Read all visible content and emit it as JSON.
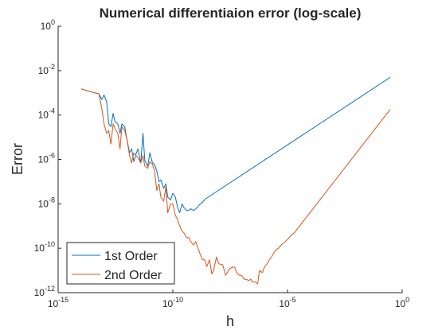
{
  "chart_data": {
    "type": "line",
    "title": "Numerical differentiaion error (log-scale)",
    "xlabel": "h",
    "ylabel": "Error",
    "xscale": "log",
    "yscale": "log",
    "xlim": [
      1e-15,
      1
    ],
    "ylim": [
      1e-12,
      1
    ],
    "grid": false,
    "legend_position": "bottom-left",
    "x_ticks": [
      {
        "value": 1e-15,
        "base": "10",
        "exp": "-15"
      },
      {
        "value": 1e-10,
        "base": "10",
        "exp": "-10"
      },
      {
        "value": 1e-05,
        "base": "10",
        "exp": "-5"
      },
      {
        "value": 1,
        "base": "10",
        "exp": "0"
      }
    ],
    "y_ticks": [
      {
        "value": 1e-12,
        "base": "10",
        "exp": "-12"
      },
      {
        "value": 1e-10,
        "base": "10",
        "exp": "-10"
      },
      {
        "value": 1e-08,
        "base": "10",
        "exp": "-8"
      },
      {
        "value": 1e-06,
        "base": "10",
        "exp": "-6"
      },
      {
        "value": 0.0001,
        "base": "10",
        "exp": "-4"
      },
      {
        "value": 0.01,
        "base": "10",
        "exp": "-2"
      },
      {
        "value": 1,
        "base": "10",
        "exp": "0"
      }
    ],
    "series": [
      {
        "name": "1st Order",
        "color": "#0072bd",
        "x": [
          1e-14,
          4e-14,
          6e-14,
          8e-14,
          1e-13,
          1.3e-13,
          1.6e-13,
          2e-13,
          2.5e-13,
          3e-13,
          4e-13,
          5e-13,
          6e-13,
          8e-13,
          1e-12,
          1.3e-12,
          1.6e-12,
          2e-12,
          2.5e-12,
          3e-12,
          4e-12,
          5e-12,
          6e-12,
          8e-12,
          1e-11,
          1.3e-11,
          1.6e-11,
          2e-11,
          2.5e-11,
          3e-11,
          4e-11,
          5e-11,
          6e-11,
          8e-11,
          1e-10,
          1.3e-10,
          1.6e-10,
          2e-10,
          2.5e-10,
          3e-10,
          4e-10,
          5e-10,
          6e-10,
          8e-10,
          1e-09,
          1.3e-09,
          1.6e-09,
          2e-09,
          2.5e-09,
          0.3
        ],
        "y": [
          0.0015,
          0.001,
          0.0009,
          0.0005,
          0.0008,
          0.0004,
          4e-05,
          3e-05,
          0.00012,
          5e-05,
          4e-05,
          1.5e-05,
          4e-05,
          3e-05,
          8e-06,
          2e-06,
          3e-06,
          8e-07,
          1.8e-06,
          3e-06,
          7e-07,
          1.5e-05,
          9e-07,
          5e-07,
          2e-06,
          7e-07,
          6e-07,
          3e-07,
          1e-07,
          1.2e-07,
          5e-08,
          8e-08,
          2e-08,
          1.5e-08,
          3e-08,
          2e-08,
          7e-09,
          4e-09,
          1e-08,
          7e-09,
          5e-09,
          5e-09,
          6e-09,
          5e-09,
          6e-09,
          8e-09,
          1e-08,
          1.2e-08,
          1.6e-08,
          0.005
        ]
      },
      {
        "name": "2nd Order",
        "color": "#d95319",
        "x": [
          1e-14,
          4e-14,
          6e-14,
          8e-14,
          1e-13,
          1.3e-13,
          1.6e-13,
          2e-13,
          2.5e-13,
          3e-13,
          4e-13,
          5e-13,
          6e-13,
          8e-13,
          1e-12,
          1.3e-12,
          1.6e-12,
          2e-12,
          2.5e-12,
          3e-12,
          4e-12,
          5e-12,
          6e-12,
          8e-12,
          1e-11,
          1.3e-11,
          1.6e-11,
          2e-11,
          2.5e-11,
          3e-11,
          4e-11,
          5e-11,
          6e-11,
          8e-11,
          1e-10,
          1.3e-10,
          1.6e-10,
          2e-10,
          2.5e-10,
          3e-10,
          4e-10,
          5e-10,
          6e-10,
          8e-10,
          1e-09,
          1.3e-09,
          1.6e-09,
          2e-09,
          2.5e-09,
          3e-09,
          4e-09,
          5e-09,
          6e-09,
          8e-09,
          1e-08,
          1.5e-08,
          2e-08,
          3e-08,
          4e-08,
          5e-08,
          6e-08,
          8e-08,
          1e-07,
          1.3e-07,
          1.6e-07,
          2e-07,
          2.5e-07,
          3e-07,
          4e-07,
          5e-07,
          6e-07,
          8e-07,
          1e-06,
          1.3e-06,
          1.6e-06,
          2e-06,
          2.5e-06,
          3e-06,
          4e-06,
          5e-06,
          6e-06,
          8e-06,
          1e-05,
          1.5e-05,
          2e-05,
          0.3
        ],
        "y": [
          0.0015,
          0.001,
          0.0009,
          0.0002,
          4e-05,
          1.5e-05,
          2e-05,
          5e-06,
          4e-05,
          2.5e-05,
          1.5e-05,
          3e-06,
          3e-05,
          2e-05,
          8e-06,
          1.5e-06,
          7e-07,
          2e-06,
          1.5e-06,
          1.2e-06,
          7e-07,
          1.5e-06,
          5e-07,
          4e-07,
          8e-07,
          6e-07,
          3e-07,
          4e-08,
          8e-08,
          2e-08,
          1.3e-08,
          6e-08,
          4e-09,
          1e-08,
          1e-08,
          3e-09,
          2e-09,
          1e-09,
          6e-10,
          5e-10,
          3e-10,
          3e-10,
          2e-10,
          1.4e-10,
          2e-10,
          9e-11,
          5e-11,
          3e-11,
          3e-11,
          1.5e-11,
          3e-11,
          7e-12,
          1e-11,
          4e-11,
          2e-11,
          1.8e-11,
          6e-12,
          1.2e-11,
          1.4e-11,
          1.4e-11,
          8e-12,
          6e-12,
          6e-12,
          4e-12,
          4e-12,
          3.5e-12,
          4e-12,
          3e-12,
          3e-12,
          2.5e-12,
          1e-11,
          8e-12,
          1.5e-11,
          2e-11,
          3e-11,
          4e-11,
          6e-11,
          8e-11,
          1e-10,
          1.3e-10,
          1.6e-10,
          2e-10,
          2.5e-10,
          4e-10,
          5e-10,
          0.00018
        ]
      }
    ]
  }
}
